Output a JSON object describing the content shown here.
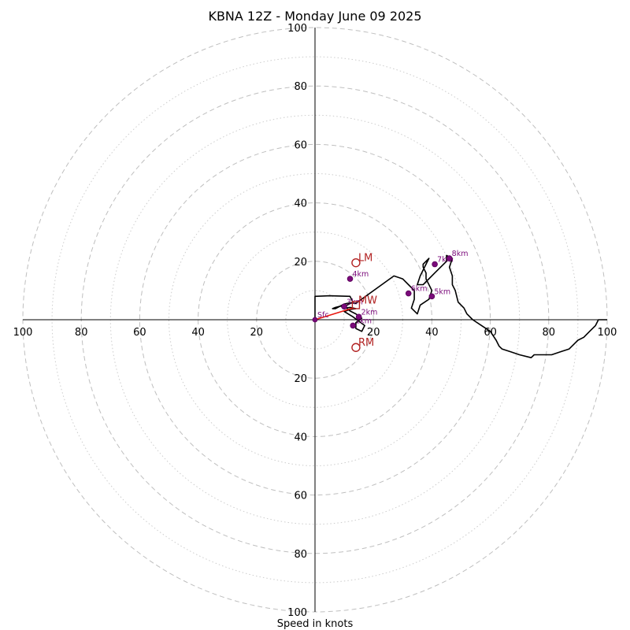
{
  "page": {
    "title": "KBNA 12Z - Monday June 09 2025",
    "xlabel": "Speed in knots"
  },
  "chart_data": {
    "type": "line",
    "subtype": "hodograph",
    "title": "KBNA 12Z - Monday June 09 2025",
    "xlabel": "Speed in knots",
    "ylabel": "",
    "rmax": 100,
    "major_rings": [
      20,
      40,
      60,
      80,
      100
    ],
    "minor_rings": [
      10,
      30,
      50,
      70,
      90
    ],
    "x_tick_labels": [
      "100",
      "80",
      "60",
      "40",
      "20",
      "20",
      "40",
      "60",
      "80",
      "100"
    ],
    "x_tick_values": [
      -100,
      -80,
      -60,
      -40,
      -20,
      20,
      40,
      60,
      80,
      100
    ],
    "y_tick_labels": [
      "100",
      "80",
      "60",
      "40",
      "20",
      "20",
      "40",
      "60",
      "80",
      "100"
    ],
    "y_tick_values": [
      100,
      80,
      60,
      40,
      20,
      -20,
      -40,
      -60,
      -80,
      -100
    ],
    "grid": true,
    "series": [
      {
        "u": [
          0,
          0,
          5,
          12,
          13,
          11,
          9,
          10,
          12,
          14,
          12,
          10,
          13,
          15,
          17,
          16,
          14,
          14,
          16,
          14,
          12,
          11,
          10,
          7,
          6,
          7,
          10,
          12,
          14,
          27,
          30,
          32,
          34,
          34,
          33,
          35,
          36,
          39,
          40,
          39,
          38,
          38,
          37,
          37,
          38,
          39,
          38,
          37,
          36,
          35,
          37,
          41,
          45,
          45,
          47,
          46,
          47,
          47,
          48,
          49,
          51,
          52,
          54,
          57,
          60,
          62,
          63,
          64,
          67,
          70,
          74,
          75,
          81,
          84,
          87,
          89,
          90,
          92,
          94,
          96,
          97,
          100
        ],
        "v": [
          0,
          8,
          8.2,
          8,
          6,
          5,
          4.5,
          4,
          4.2,
          3.8,
          3.5,
          2.8,
          1,
          -0.5,
          -2,
          -4,
          -3,
          -1,
          0.5,
          2,
          3,
          3.8,
          5,
          4.2,
          3.8,
          3.8,
          5.4,
          5.8,
          5.6,
          15,
          14,
          12,
          10,
          7,
          4,
          2,
          5,
          7,
          10,
          12,
          14,
          16,
          18,
          19,
          20,
          21,
          19,
          17,
          15,
          12,
          12,
          16,
          20,
          22,
          21,
          18,
          15,
          12,
          10,
          6,
          4,
          2,
          0,
          -2,
          -4,
          -7,
          -9,
          -10,
          -11,
          -12,
          -13,
          -12,
          -12,
          -11,
          -10,
          -8,
          -7,
          -6,
          -4,
          -2,
          0,
          0
        ]
      }
    ],
    "height_labels": [
      {
        "label": "Sfc",
        "u": 0,
        "v": 0
      },
      {
        "label": "1km",
        "u": 13,
        "v": -2
      },
      {
        "label": "2km",
        "u": 15,
        "v": 1
      },
      {
        "label": "3km",
        "u": 10,
        "v": 4.5
      },
      {
        "label": "4km",
        "u": 12,
        "v": 14
      },
      {
        "label": "5km",
        "u": 40,
        "v": 8
      },
      {
        "label": "6km",
        "u": 32,
        "v": 9
      },
      {
        "label": "7km",
        "u": 41,
        "v": 19
      },
      {
        "label": "8km",
        "u": 46,
        "v": 21
      }
    ],
    "storm_motion": [
      {
        "label": "LM",
        "u": 14,
        "v": 19.5
      },
      {
        "label": "MW",
        "u": 14,
        "v": 5
      },
      {
        "label": "RM",
        "u": 14,
        "v": -9.5
      }
    ],
    "shear_vector": {
      "from": [
        0,
        0
      ],
      "to": [
        13,
        4
      ]
    },
    "colors": {
      "trace": "#000000",
      "shear": "#e8170f",
      "height_points": "#7a0a7a",
      "storm_motion": "#b22222",
      "grid": "#bfbfbf"
    }
  }
}
